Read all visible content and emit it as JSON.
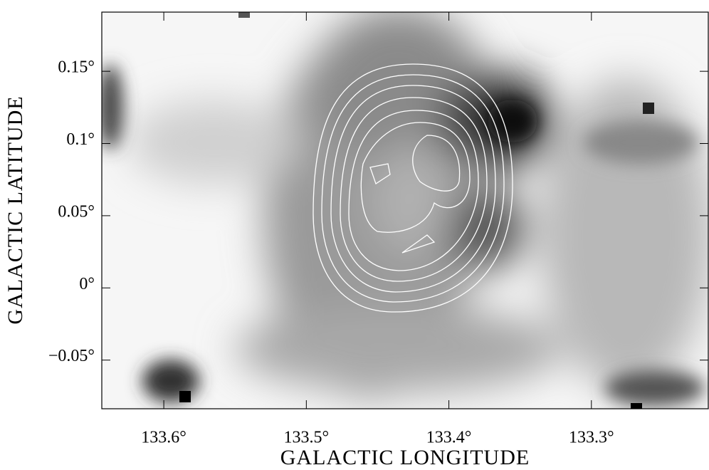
{
  "chart_data": {
    "type": "image",
    "xlabel": "GALACTIC LONGITUDE",
    "ylabel": "GALACTIC LATITUDE",
    "xlim": [
      133.6435,
      133.218
    ],
    "ylim": [
      -0.0837,
      0.191
    ],
    "xticks": [
      {
        "value": 133.6,
        "label": "133.6°"
      },
      {
        "value": 133.5,
        "label": "133.5°"
      },
      {
        "value": 133.4,
        "label": "133.4°"
      },
      {
        "value": 133.3,
        "label": "133.3°"
      }
    ],
    "yticks": [
      {
        "value": -0.05,
        "label": "−0.05°"
      },
      {
        "value": 0,
        "label": "0°"
      },
      {
        "value": 0.05,
        "label": "0.05°"
      },
      {
        "value": 0.1,
        "label": "0.1°"
      },
      {
        "value": 0.15,
        "label": "0.15°"
      }
    ]
  }
}
